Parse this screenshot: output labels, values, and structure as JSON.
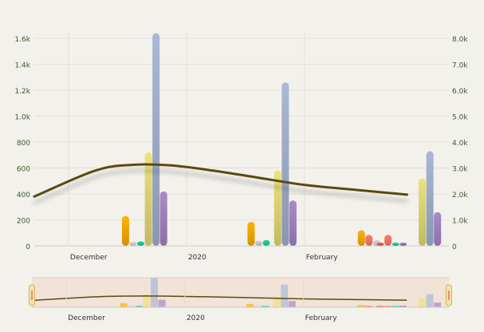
{
  "chart_data": {
    "type": "bar",
    "x_axis": {
      "type": "date",
      "range": [
        "2019-11-22",
        "2020-03-10"
      ],
      "tick_labels": [
        {
          "label": "December",
          "date": "2019-12-01"
        },
        {
          "label": "2020",
          "date": "2020-01-01"
        },
        {
          "label": "February",
          "date": "2020-02-01"
        }
      ]
    },
    "left_axis": {
      "range": [
        0,
        1650
      ],
      "ticks": [
        0,
        200,
        400,
        600,
        800,
        1000,
        1200,
        1400,
        1600
      ],
      "tick_labels": [
        "0",
        "200",
        "400",
        "600",
        "800",
        "1.0k",
        "1.2k",
        "1.4k",
        "1.6k"
      ]
    },
    "right_axis": {
      "range": [
        0,
        8250
      ],
      "ticks": [
        0,
        1000,
        2000,
        3000,
        4000,
        5000,
        6000,
        7000,
        8000
      ],
      "tick_labels": [
        "0",
        "1.0k",
        "2.0k",
        "3.0k",
        "4.0k",
        "5.0k",
        "6.0k",
        "7.0k",
        "8.0k"
      ]
    },
    "grid": true,
    "series": [
      {
        "type": "bar",
        "axis": "left",
        "color": "#ffb300",
        "points": [
          [
            "2019-12-16",
            230
          ],
          [
            "2020-01-18",
            185
          ],
          [
            "2020-02-16",
            120
          ]
        ]
      },
      {
        "type": "bar",
        "axis": "left",
        "color": "#ff7c6e",
        "points": [
          [
            "2020-02-18",
            85
          ],
          [
            "2020-02-23",
            85
          ]
        ]
      },
      {
        "type": "bar",
        "axis": "left",
        "color": "#d6d6d6",
        "points": [
          [
            "2019-12-18",
            30
          ],
          [
            "2020-01-20",
            40
          ],
          [
            "2020-02-20",
            45
          ]
        ]
      },
      {
        "type": "bar",
        "axis": "left",
        "color": "#19d6a8",
        "points": [
          [
            "2019-12-20",
            35
          ],
          [
            "2020-01-22",
            45
          ],
          [
            "2020-02-25",
            20
          ]
        ]
      },
      {
        "type": "bar",
        "axis": "left",
        "color": "#ff5a5a",
        "points": [
          [
            "2020-02-21",
            25
          ]
        ]
      },
      {
        "type": "bar",
        "axis": "left",
        "color": "#9b7ac8",
        "points": [
          [
            "2020-02-27",
            20
          ]
        ]
      },
      {
        "type": "bar",
        "axis": "right",
        "color": "#ece27a",
        "points": [
          [
            "2019-12-22",
            3600
          ],
          [
            "2020-01-25",
            2900
          ],
          [
            "2020-03-03",
            2600
          ]
        ]
      },
      {
        "type": "bar",
        "axis": "right",
        "color": "#a9b8d6",
        "points": [
          [
            "2019-12-24",
            8200
          ],
          [
            "2020-01-27",
            6300
          ],
          [
            "2020-03-05",
            3650
          ]
        ]
      },
      {
        "type": "bar",
        "axis": "right",
        "color": "#a98acb",
        "points": [
          [
            "2019-12-26",
            2100
          ],
          [
            "2020-01-29",
            1750
          ],
          [
            "2020-03-07",
            1300
          ]
        ]
      },
      {
        "type": "line",
        "axis": "left",
        "color": "#5b4a10",
        "smooth": true,
        "points": [
          [
            "2019-11-22",
            380
          ],
          [
            "2019-12-08",
            580
          ],
          [
            "2019-12-18",
            625
          ],
          [
            "2019-12-28",
            620
          ],
          [
            "2020-01-08",
            580
          ],
          [
            "2020-01-20",
            525
          ],
          [
            "2020-02-01",
            470
          ],
          [
            "2020-02-15",
            430
          ],
          [
            "2020-02-28",
            395
          ]
        ]
      }
    ],
    "navigator": {
      "window": [
        "2019-11-22",
        "2020-03-10"
      ],
      "tick_labels": [
        {
          "label": "December",
          "date": "2019-12-01"
        },
        {
          "label": "2020",
          "date": "2020-01-01"
        },
        {
          "label": "February",
          "date": "2020-02-01"
        }
      ]
    }
  },
  "colors": {
    "background": "#f3f1ec",
    "grid": "#e4e1da",
    "axis_text": "#3b5a2a",
    "navigator_mask": "#f1ddd2",
    "navigator_handle": "#f2e3b0",
    "navigator_handle_border": "#d9b24f",
    "navigator_handle_mark": "#e05a3a"
  }
}
